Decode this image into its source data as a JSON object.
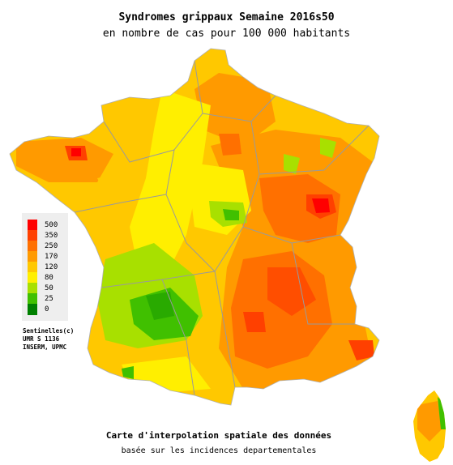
{
  "header": {
    "title": "Syndromes grippaux Semaine 2016s50",
    "subtitle": "en nombre de cas pour 100 000 habitants"
  },
  "legend": {
    "items": [
      {
        "label": "500",
        "color": "#ff0000"
      },
      {
        "label": "350",
        "color": "#ff4000"
      },
      {
        "label": "250",
        "color": "#ff7000"
      },
      {
        "label": "170",
        "color": "#ff9a00"
      },
      {
        "label": "120",
        "color": "#ffc800"
      },
      {
        "label": "80",
        "color": "#ffef00"
      },
      {
        "label": "50",
        "color": "#a8e000"
      },
      {
        "label": "25",
        "color": "#40c000"
      },
      {
        "label": "0",
        "color": "#008000"
      }
    ]
  },
  "credits": {
    "line1": "Sentinelles(c)",
    "line2": "UMR S 1136",
    "line3": "INSERM, UPMC"
  },
  "footer": {
    "line1": "Carte d'interpolation spatiale des données",
    "line2": "basée sur les incidences departementales"
  }
}
